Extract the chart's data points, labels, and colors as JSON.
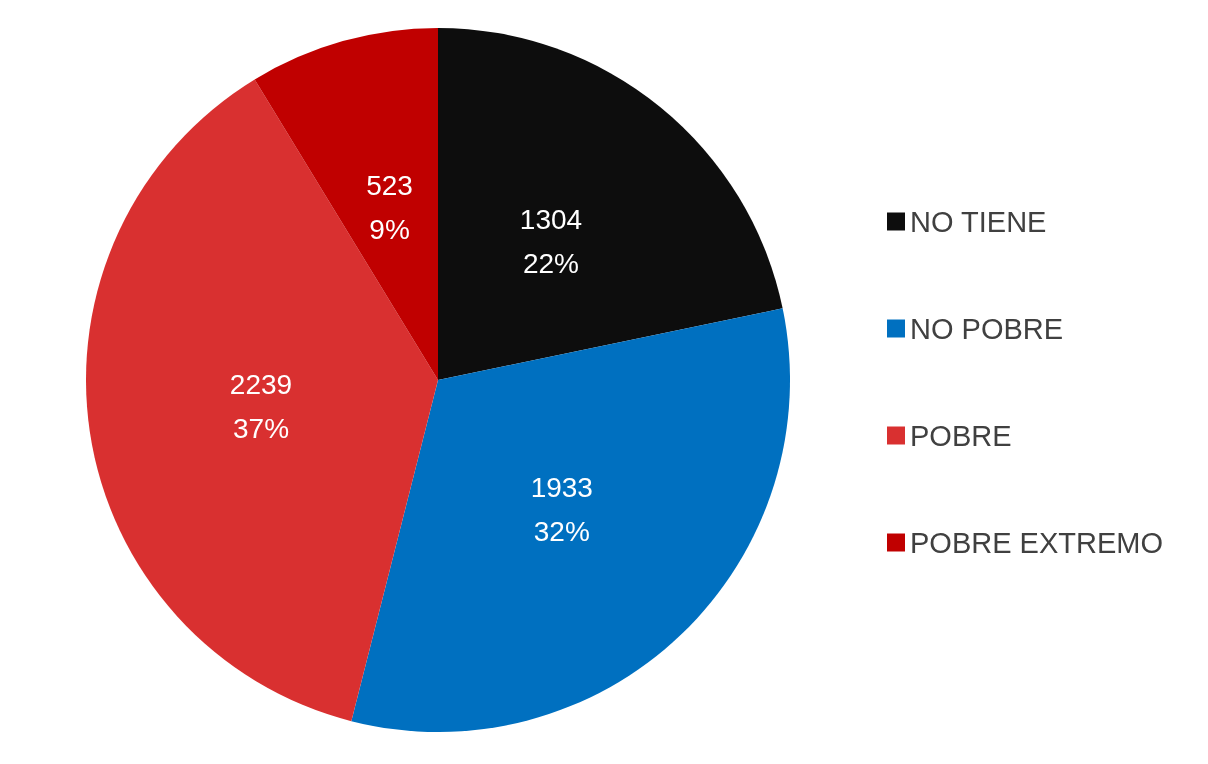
{
  "chart_data": {
    "type": "pie",
    "categories": [
      "NO TIENE",
      "NO POBRE",
      "POBRE",
      "POBRE EXTREMO"
    ],
    "values": [
      1304,
      1933,
      2239,
      523
    ],
    "colors": [
      "#0d0d0d",
      "#0070c0",
      "#d93030",
      "#c00000"
    ],
    "value_labels": [
      "1304\n22%",
      "1933\n32%",
      "2239\n37%",
      "523\n9%"
    ],
    "legend": "right"
  }
}
